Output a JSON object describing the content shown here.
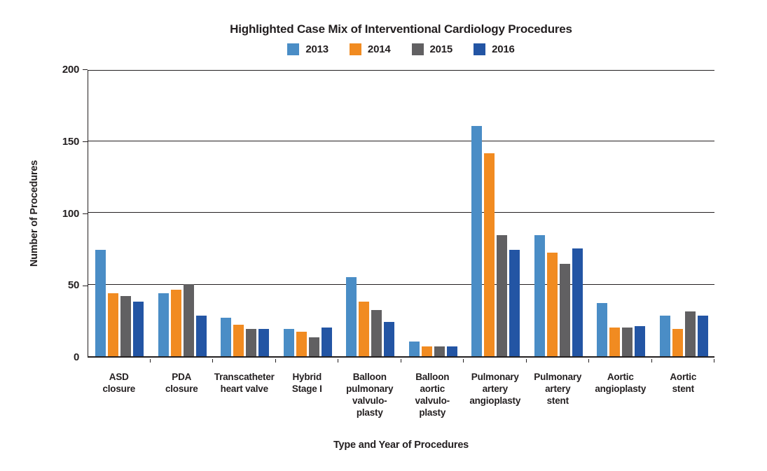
{
  "chart_data": {
    "type": "bar",
    "title": "Highlighted Case Mix of Interventional Cardiology Procedures",
    "xlabel": "Type and Year of Procedures",
    "ylabel": "Number of Procedures",
    "ylim": [
      0,
      200
    ],
    "yticks": [
      0,
      50,
      100,
      150,
      200
    ],
    "grid": true,
    "legend_position": "top-center",
    "text_color": "#231F20",
    "categories": [
      "ASD closure",
      "PDA closure",
      "Transcatheter heart valve",
      "Hybrid Stage I",
      "Balloon pulmonary valvuloplasty",
      "Balloon aortic valvuloplasty",
      "Pulmonary artery angioplasty",
      "Pulmonary artery stent",
      "Aortic angioplasty",
      "Aortic stent"
    ],
    "category_label_lines": [
      [
        "ASD",
        "closure"
      ],
      [
        "PDA",
        "closure"
      ],
      [
        "Transcatheter",
        "heart valve"
      ],
      [
        "Hybrid",
        "Stage I"
      ],
      [
        "Balloon",
        "pulmonary",
        "valvulo-",
        "plasty"
      ],
      [
        "Balloon",
        "aortic",
        "valvulo-",
        "plasty"
      ],
      [
        "Pulmonary",
        "artery",
        "angioplasty"
      ],
      [
        "Pulmonary",
        "artery",
        "stent"
      ],
      [
        "Aortic",
        "angioplasty"
      ],
      [
        "Aortic",
        "stent"
      ]
    ],
    "series": [
      {
        "name": "2013",
        "color": "#4A8DC6",
        "values": [
          74,
          44,
          27,
          19,
          55,
          10,
          160,
          84,
          37,
          28
        ]
      },
      {
        "name": "2014",
        "color": "#F18B21",
        "values": [
          44,
          46,
          22,
          17,
          38,
          7,
          141,
          72,
          20,
          19
        ]
      },
      {
        "name": "2015",
        "color": "#616062",
        "values": [
          42,
          50,
          19,
          13,
          32,
          7,
          84,
          64,
          20,
          31
        ]
      },
      {
        "name": "2016",
        "color": "#2355A4",
        "values": [
          38,
          28,
          19,
          20,
          24,
          7,
          74,
          75,
          21,
          28
        ]
      }
    ]
  }
}
